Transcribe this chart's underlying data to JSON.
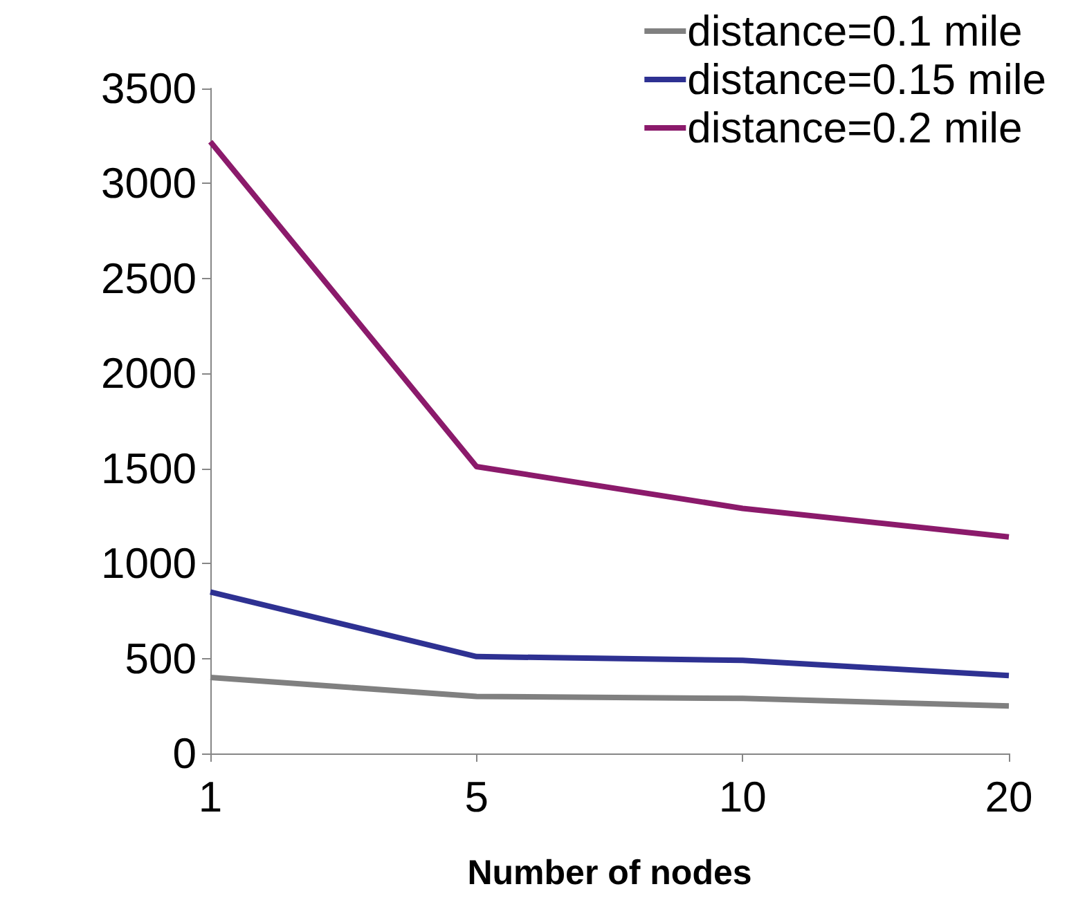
{
  "chart_data": {
    "type": "line",
    "xlabel": "Number of nodes",
    "categories": [
      "1",
      "5",
      "10",
      "20"
    ],
    "series": [
      {
        "name": "distance=0.1 mile",
        "color": "#808080",
        "values": [
          400,
          300,
          290,
          250
        ]
      },
      {
        "name": "distance=0.15 mile",
        "color": "#2e3192",
        "values": [
          850,
          510,
          490,
          410
        ]
      },
      {
        "name": "distance=0.2 mile",
        "color": "#8b1a6b",
        "values": [
          3220,
          1510,
          1290,
          1140
        ]
      }
    ],
    "ylim": [
      0,
      3500
    ],
    "yticks": [
      0,
      500,
      1000,
      1500,
      2000,
      2500,
      3000,
      3500
    ],
    "grid": false,
    "legend": "top right",
    "marker": "none",
    "line_style": "solid"
  }
}
